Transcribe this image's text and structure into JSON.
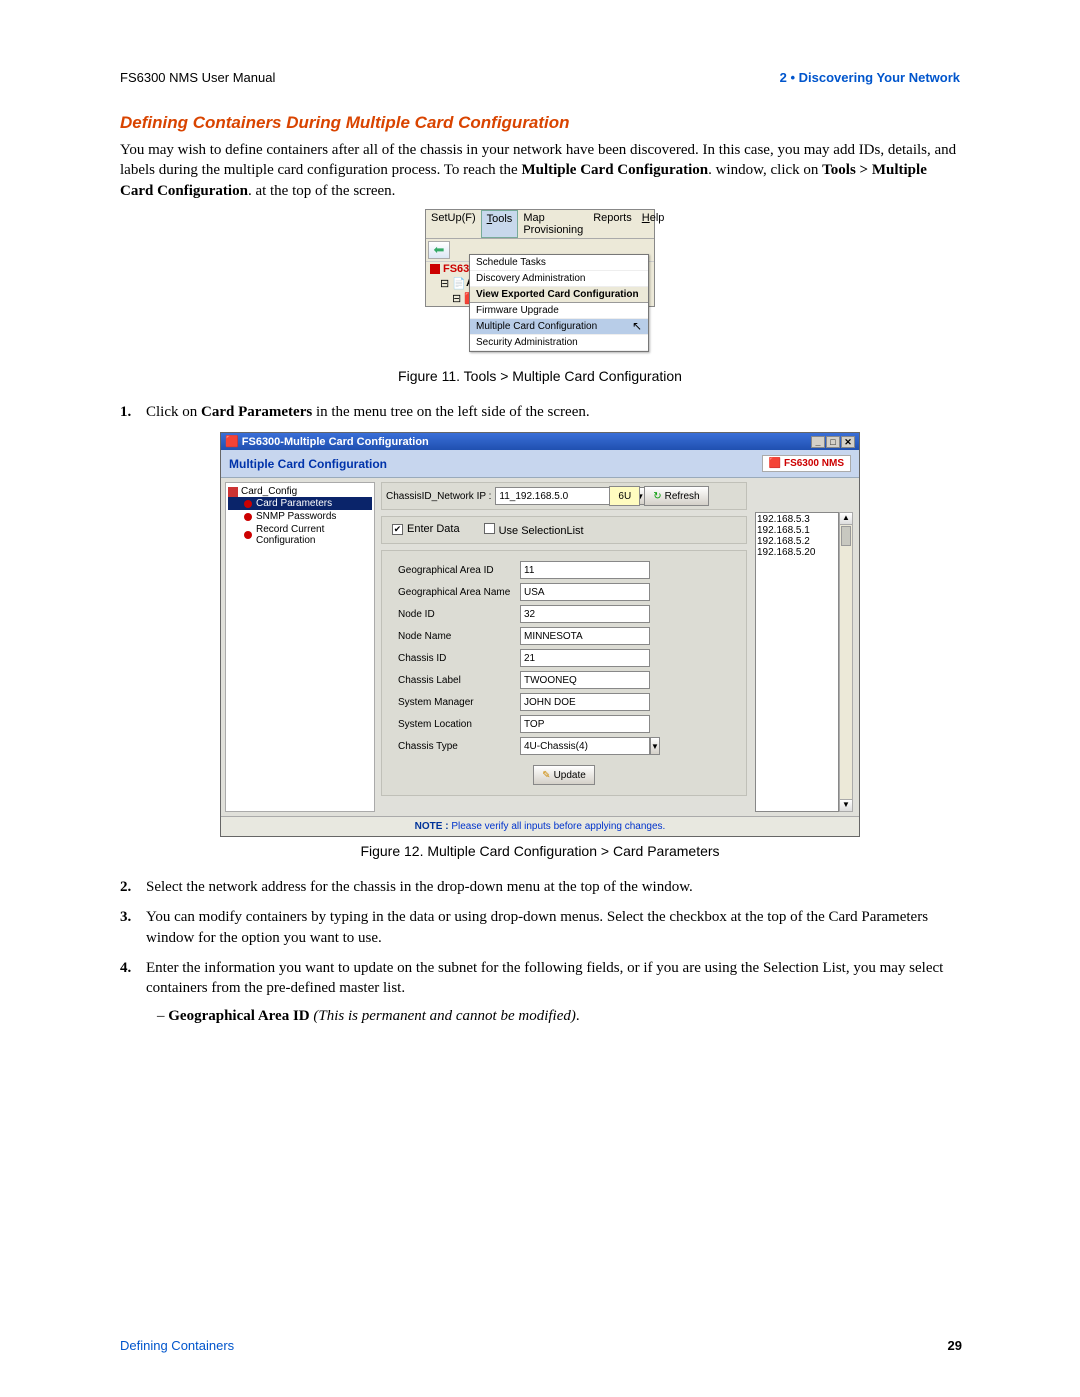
{
  "header": {
    "left": "FS6300 NMS User Manual",
    "right": "2 • Discovering Your Network"
  },
  "section_title": "Defining Containers During Multiple Card Configuration",
  "intro_html": "You may wish to define containers after all of the chassis in your network have been discovered. In this case, you may add IDs, details, and labels during the multiple card configuration process. To reach the <b>Multiple Card Configuration</b>. window, click on <b>Tools > Multiple Card Configuration</b>. at the top of the screen.",
  "fig11": {
    "caption": "Figure 11. Tools > Multiple Card Configuration",
    "menubar": [
      "SetUp(F)",
      "Tools",
      "Map Provisioning",
      "Reports",
      "Help"
    ],
    "menu_items": [
      "Schedule Tasks",
      "Discovery Administration",
      "View Exported Card Configuration",
      "Firmware Upgrade",
      "Multiple Card Configuration",
      "Security Administration"
    ],
    "tree_label": "FS6300"
  },
  "steps": {
    "s1": "Click on <b>Card Parameters</b> in the menu tree on the left side of the screen.",
    "s2": "Select the network address for the chassis in the drop-down menu at the top of the window.",
    "s3": "You can modify containers by typing in the data or using drop-down menus. Select the checkbox at the top of the Card Parameters window for the option you want to use.",
    "s4": "Enter the information you want to update on the subnet for the following fields, or if you are using the Selection List, you may select containers from the pre-defined master list.",
    "s4a": "– <b>Geographical Area ID</b> <i>(This is permanent and cannot be modified)</i>."
  },
  "fig12": {
    "caption": "Figure 12. Multiple Card Configuration > Card Parameters",
    "title": "FS6300-Multiple Card Configuration",
    "header": "Multiple Card Configuration",
    "brand": "FS6300 NMS",
    "tree": {
      "root": "Card_Config",
      "items": [
        "Card Parameters",
        "SNMP Passwords",
        "Record Current Configuration"
      ]
    },
    "top": {
      "label": "ChassisID_Network IP :",
      "value": "11_192.168.5.0",
      "sixu": "6U",
      "refresh": "Refresh"
    },
    "iplist": [
      "192.168.5.3",
      "192.168.5.1",
      "192.168.5.2",
      "192.168.5.20"
    ],
    "opts": {
      "enter": "Enter Data",
      "sel": "Use SelectionList"
    },
    "fields": [
      {
        "label": "Geographical Area ID",
        "value": "11"
      },
      {
        "label": "Geographical Area Name",
        "value": "USA"
      },
      {
        "label": "Node ID",
        "value": "32"
      },
      {
        "label": "Node Name",
        "value": "MINNESOTA"
      },
      {
        "label": "Chassis ID",
        "value": "21"
      },
      {
        "label": "Chassis Label",
        "value": "TWOONEQ"
      },
      {
        "label": "System Manager",
        "value": "JOHN DOE"
      },
      {
        "label": "System Location",
        "value": "TOP"
      }
    ],
    "chassis_type": {
      "label": "Chassis Type",
      "value": "4U-Chassis(4)"
    },
    "update": "Update",
    "note_label": "NOTE :",
    "note": "Please verify all inputs before applying changes."
  },
  "footer": {
    "left": "Defining Containers",
    "page": "29"
  }
}
